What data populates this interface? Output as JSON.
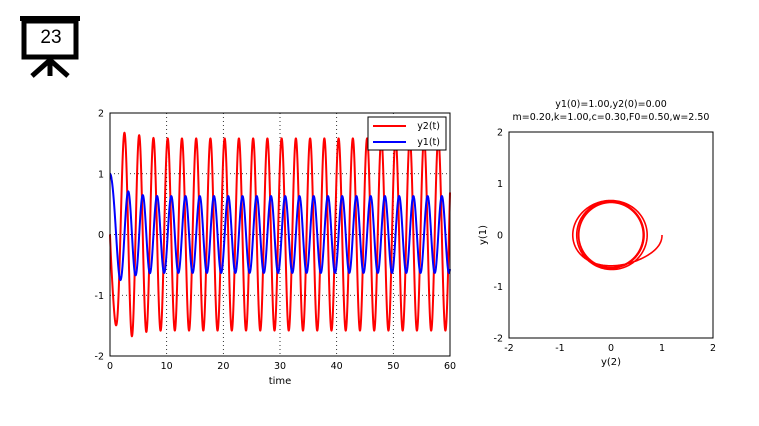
{
  "slide": {
    "number": "23",
    "icon": "presentation-board-icon"
  },
  "chart_data": [
    {
      "type": "line",
      "title": "",
      "xlabel": "time",
      "ylabel": "",
      "xlim": [
        0,
        60
      ],
      "ylim": [
        -2,
        2
      ],
      "xticks": [
        "0",
        "10",
        "20",
        "30",
        "40",
        "50",
        "60"
      ],
      "yticks": [
        "-2",
        "-1",
        "0",
        "1",
        "2"
      ],
      "grid": "dotted",
      "legend": "top-right",
      "params": {
        "m": 0.2,
        "k": 1.0,
        "c": 0.3,
        "F0": 0.5,
        "w": 2.5,
        "y1_0": 1.0,
        "y2_0": 0.0
      },
      "series": [
        {
          "name": "y2(t)",
          "color": "#ff0000"
        },
        {
          "name": "y1(t)",
          "color": "#0000ff"
        }
      ]
    },
    {
      "type": "line",
      "title": "y1(0)=1.00,y2(0)=0.00",
      "subtitle": "m=0.20,k=1.00,c=0.30,F0=0.50,w=2.50",
      "xlabel": "y(2)",
      "ylabel": "y(1)",
      "xlim": [
        -2,
        2
      ],
      "ylim": [
        -2,
        2
      ],
      "xticks": [
        "-2",
        "-1",
        "0",
        "1",
        "2"
      ],
      "yticks": [
        "-2",
        "-1",
        "0",
        "1",
        "2"
      ],
      "grid": "off",
      "series": [
        {
          "name": "",
          "color": "#ff0000"
        }
      ]
    }
  ]
}
